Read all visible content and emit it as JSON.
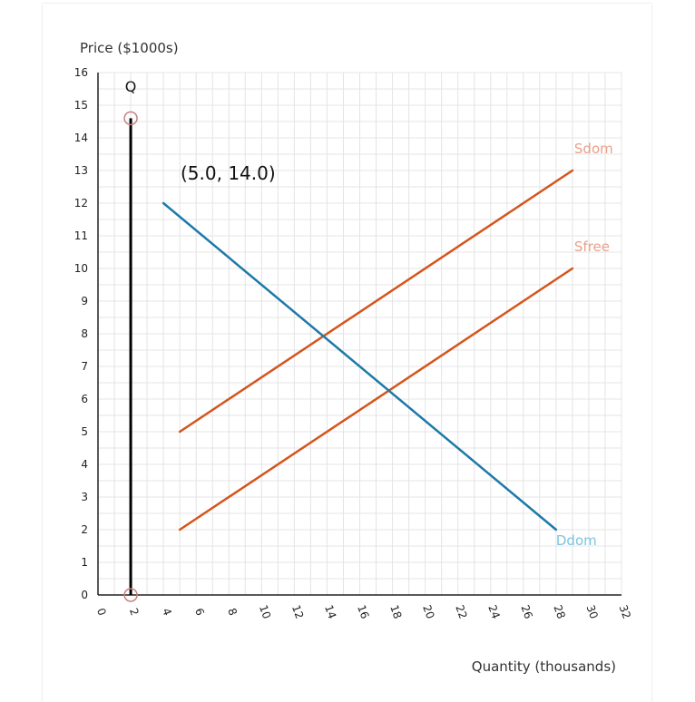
{
  "chart_data": {
    "type": "line",
    "ylabel": "Price ($1000s)",
    "xlabel": "Quantity (thousands)",
    "xlim": [
      0,
      32
    ],
    "ylim": [
      0,
      16
    ],
    "x_ticks": [
      0,
      2,
      4,
      6,
      8,
      10,
      12,
      14,
      16,
      18,
      20,
      22,
      24,
      26,
      28,
      30,
      32
    ],
    "y_ticks": [
      0,
      1,
      2,
      3,
      4,
      5,
      6,
      7,
      8,
      9,
      10,
      11,
      12,
      13,
      14,
      15,
      16
    ],
    "series": [
      {
        "name": "Sdom",
        "color": "#d4551c",
        "label_color": "#e8a08a",
        "points": [
          [
            5,
            5
          ],
          [
            29,
            13
          ]
        ]
      },
      {
        "name": "Sfree",
        "color": "#d4551c",
        "label_color": "#e8a08a",
        "points": [
          [
            5,
            2
          ],
          [
            29,
            10
          ]
        ]
      },
      {
        "name": "Ddom",
        "color": "#1c7aa8",
        "label_color": "#7cc4dd",
        "points": [
          [
            4,
            12
          ],
          [
            28,
            2
          ]
        ]
      }
    ],
    "quantity_line": {
      "label": "Q",
      "x": 2,
      "y_range": [
        0,
        14.6
      ],
      "color": "#000000",
      "handle_color": "#c98080"
    },
    "annotation": {
      "text": "(5.0,  14.0)"
    }
  }
}
